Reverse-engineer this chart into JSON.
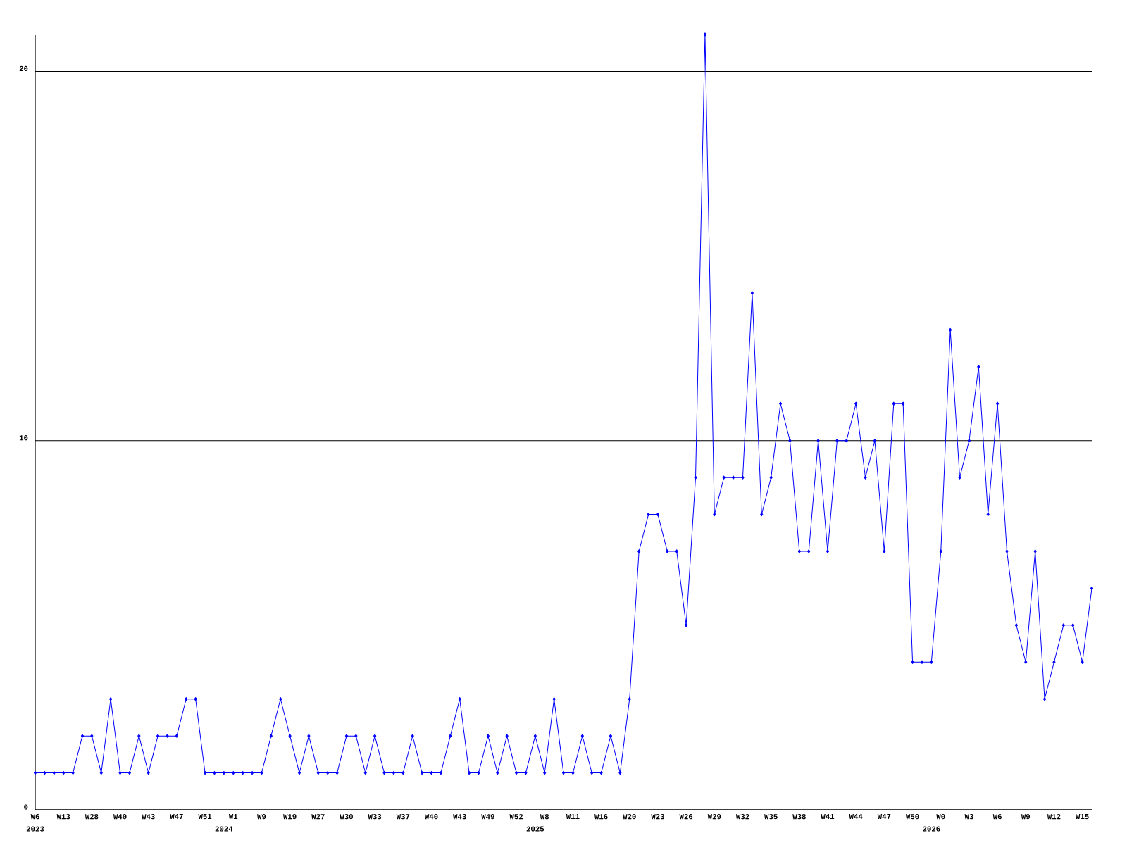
{
  "chart_data": {
    "type": "line",
    "color": "#0000ff",
    "marker": "diamond",
    "line_style": "solid",
    "grid": "y",
    "categories": [
      "W6",
      null,
      null,
      "W13",
      null,
      null,
      "W28",
      null,
      null,
      "W40",
      null,
      null,
      "W43",
      null,
      null,
      "W47",
      null,
      null,
      "W51",
      null,
      null,
      "W1",
      null,
      null,
      "W9",
      null,
      null,
      "W19",
      null,
      null,
      "W27",
      null,
      null,
      "W30",
      null,
      null,
      "W33",
      null,
      null,
      "W37",
      null,
      null,
      "W40",
      null,
      null,
      "W43",
      null,
      null,
      "W49",
      null,
      null,
      "W52",
      null,
      null,
      "W8",
      null,
      null,
      "W11",
      null,
      null,
      "W16",
      null,
      null,
      "W20",
      null,
      null,
      "W23",
      null,
      null,
      "W26",
      null,
      null,
      "W29",
      null,
      null,
      "W32",
      null,
      null,
      "W35",
      null,
      null,
      "W38",
      null,
      null,
      "W41",
      null,
      null,
      "W44",
      null,
      null,
      "W47",
      null,
      null,
      "W50",
      null,
      null,
      "W0",
      null,
      null,
      "W3",
      null,
      null,
      "W6",
      null,
      null,
      "W9",
      null,
      null,
      "W12",
      null,
      null,
      "W15",
      null
    ],
    "values": [
      1,
      1,
      1,
      1,
      1,
      2,
      2,
      1,
      3,
      1,
      1,
      2,
      1,
      2,
      2,
      2,
      3,
      3,
      1,
      1,
      1,
      1,
      1,
      1,
      1,
      2,
      3,
      2,
      1,
      2,
      1,
      1,
      1,
      2,
      2,
      1,
      2,
      1,
      1,
      1,
      2,
      1,
      1,
      1,
      2,
      3,
      1,
      1,
      2,
      1,
      2,
      1,
      1,
      2,
      1,
      3,
      1,
      1,
      2,
      1,
      1,
      2,
      1,
      3,
      7,
      8,
      8,
      7,
      7,
      5,
      9,
      21,
      8,
      9,
      9,
      9,
      14,
      8,
      9,
      11,
      10,
      7,
      7,
      10,
      7,
      10,
      10,
      11,
      9,
      10,
      7,
      11,
      11,
      4,
      4,
      4,
      7,
      13,
      9,
      10,
      12,
      8,
      11,
      7,
      5,
      4,
      7,
      3,
      4,
      5,
      5,
      4,
      6
    ],
    "ylim": [
      0,
      21
    ],
    "yticks": [
      0,
      10,
      20
    ],
    "annotations": [
      "2023",
      "2024",
      "2025",
      "2026"
    ]
  }
}
